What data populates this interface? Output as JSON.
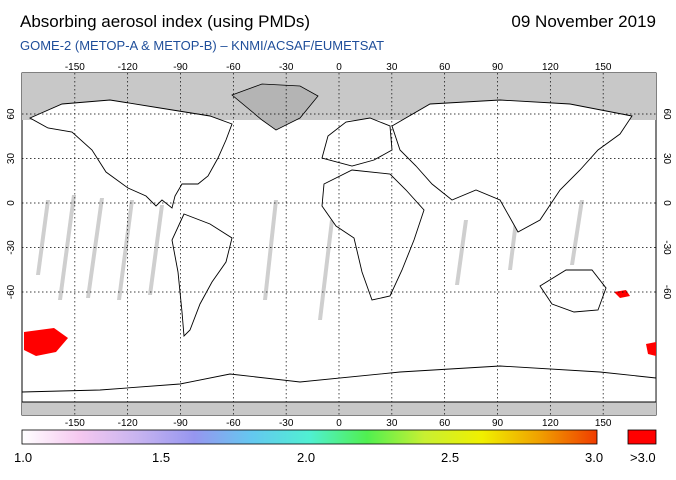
{
  "header": {
    "title": "Absorbing aerosol index (using PMDs)",
    "date": "09 November 2019",
    "subtitle": "GOME-2 (METOP-A & METOP-B)  –  KNMI/ACSAF/EUMETSAT"
  },
  "map": {
    "lon_ticks": [
      "-150",
      "-120",
      "-90",
      "-60",
      "-30",
      "0",
      "30",
      "60",
      "90",
      "120",
      "150"
    ],
    "lat_ticks": [
      "60",
      "30",
      "0",
      "-30",
      "-60"
    ],
    "colors": {
      "ocean": "#ffffff",
      "land_outline": "#000000",
      "no_data": "#c8c8c8",
      "grid": "#000000",
      "high_value": "#ff0000"
    }
  },
  "colorbar": {
    "labels": [
      "1.0",
      "1.5",
      "2.0",
      "2.5",
      "3.0"
    ],
    "over_label": ">3.0",
    "stops": [
      "#ffffff",
      "#f5c8f0",
      "#c8b4f0",
      "#9696f0",
      "#64c8f0",
      "#50f0d2",
      "#50f050",
      "#c8f032",
      "#f0f000",
      "#f0a000",
      "#f03c00"
    ],
    "over_color": "#ff0000"
  }
}
